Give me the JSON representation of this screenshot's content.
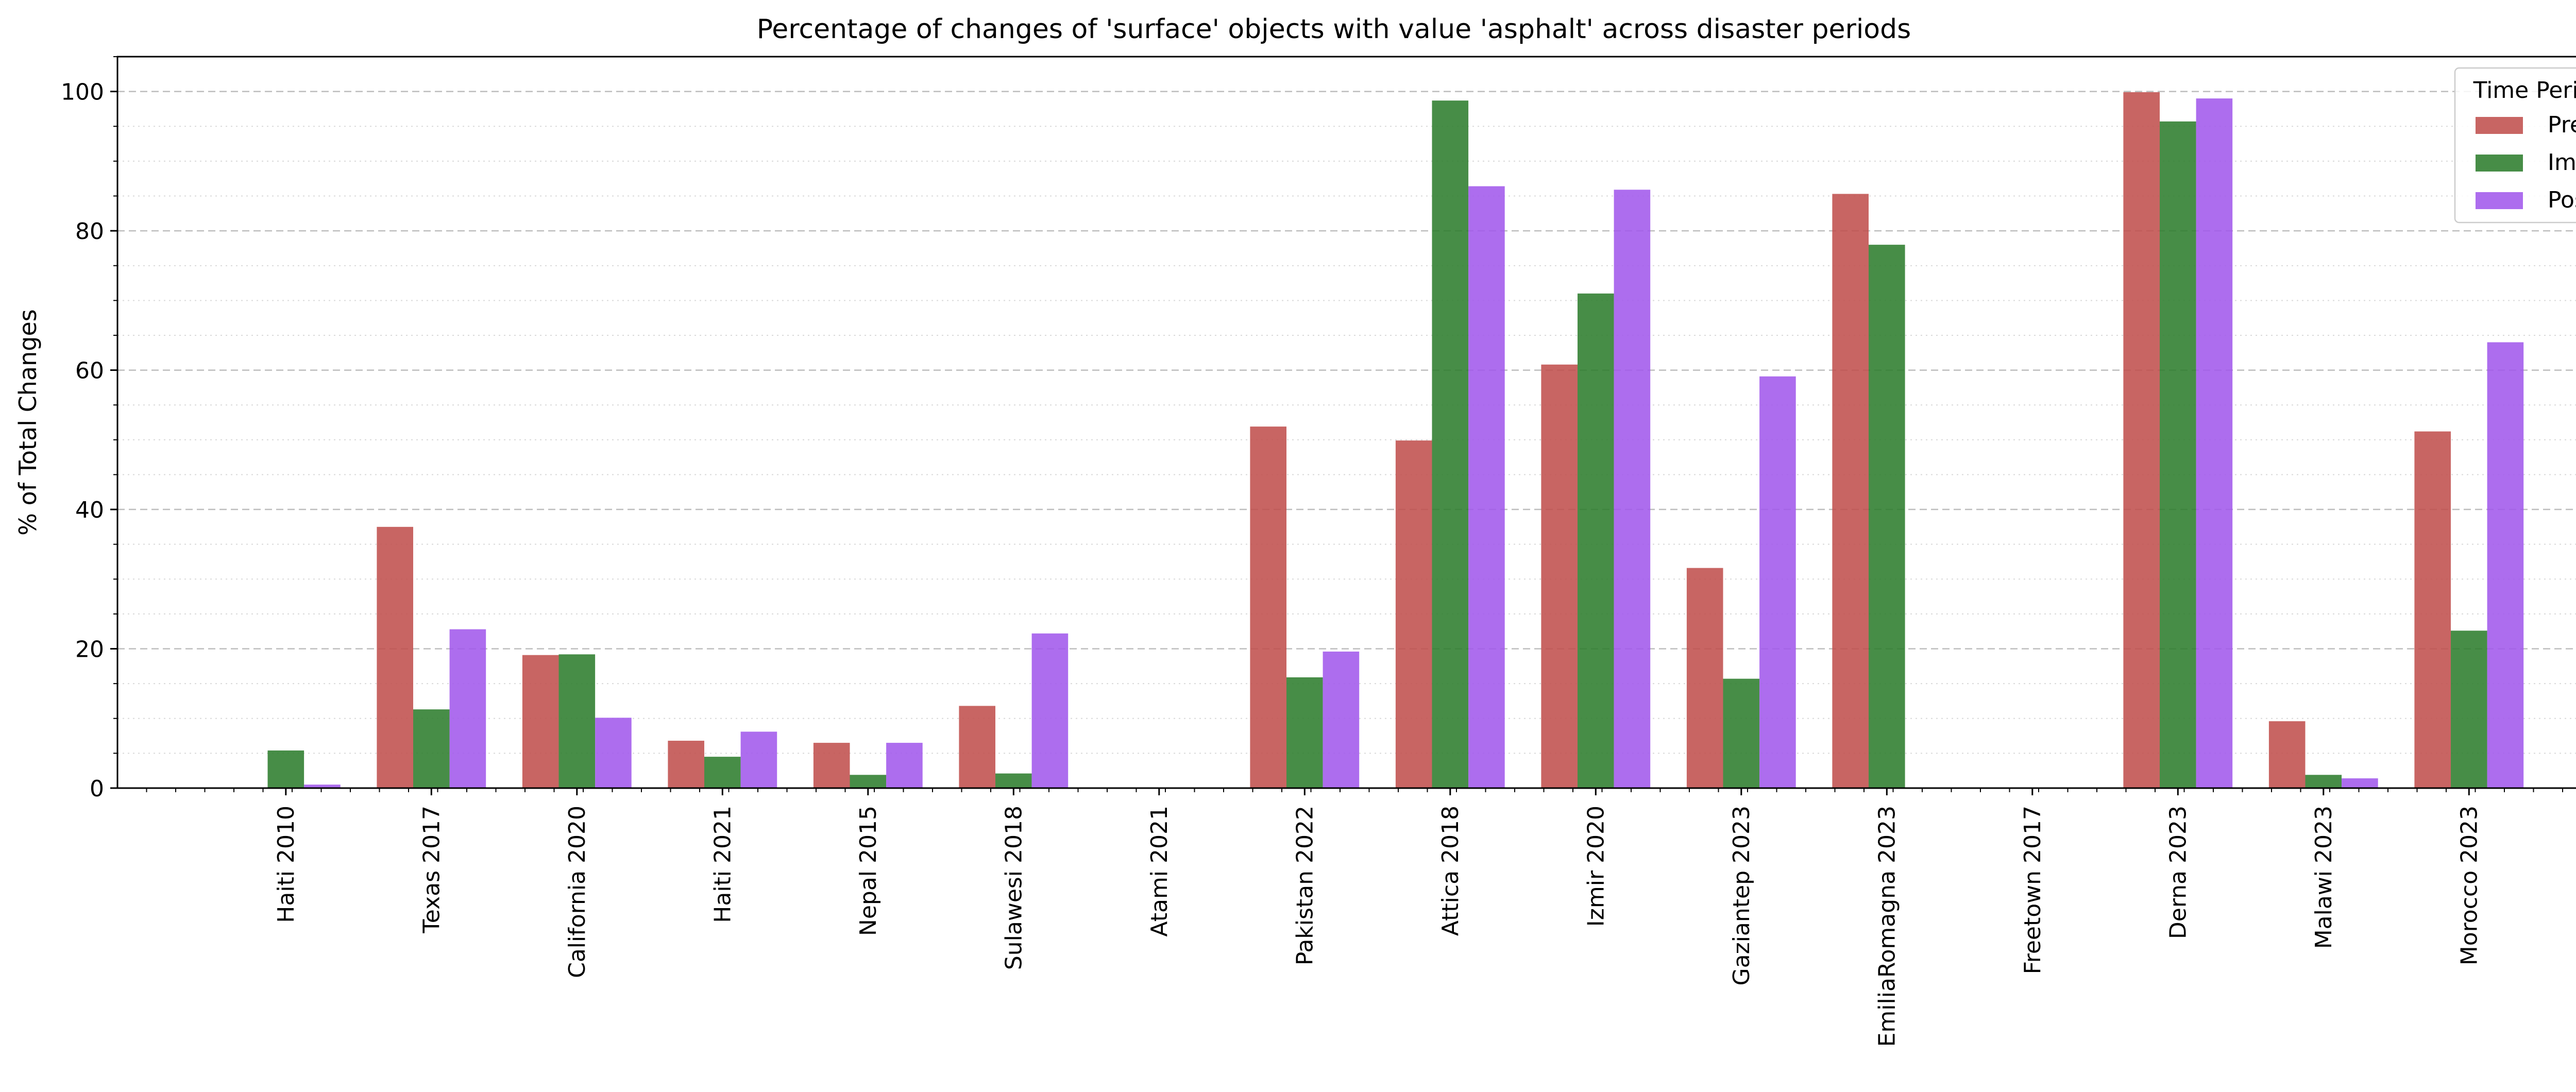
{
  "chart_data": {
    "type": "bar",
    "title": "Percentage of changes of 'surface' objects with value 'asphalt' across disaster periods",
    "xlabel": "",
    "ylabel": "% of Total Changes",
    "ylim": [
      0,
      105
    ],
    "yticks": [
      0,
      20,
      40,
      60,
      80,
      100
    ],
    "grid": true,
    "legend": {
      "title": "Time Period",
      "placement": "top-right"
    },
    "categories": [
      "Haiti 2010",
      "Texas 2017",
      "California 2020",
      "Haiti 2021",
      "Nepal 2015",
      "Sulawesi 2018",
      "Atami 2021",
      "Pakistan 2022",
      "Attica 2018",
      "Izmir 2020",
      "Gaziantep 2023",
      "EmiliaRomagna 2023",
      "Freetown 2017",
      "Derna 2023",
      "Malawi 2023",
      "Morocco 2023"
    ],
    "series": [
      {
        "name": "Pre",
        "color": "#c0504d",
        "values": [
          0,
          37.5,
          19.1,
          6.8,
          6.5,
          11.8,
          0,
          51.9,
          49.9,
          60.8,
          31.6,
          85.3,
          0,
          99.9,
          9.6,
          51.2
        ]
      },
      {
        "name": "Imm",
        "color": "#2e7d2e",
        "values": [
          5.4,
          11.3,
          19.2,
          4.5,
          1.9,
          2.1,
          0,
          15.9,
          98.7,
          71.0,
          15.7,
          78.0,
          0,
          95.7,
          1.9,
          22.6
        ]
      },
      {
        "name": "Post",
        "color": "#a259ec",
        "values": [
          0.5,
          22.8,
          10.1,
          8.1,
          6.5,
          22.2,
          0,
          19.6,
          86.4,
          85.9,
          59.1,
          0,
          0,
          99.0,
          1.4,
          64.0
        ]
      }
    ]
  }
}
